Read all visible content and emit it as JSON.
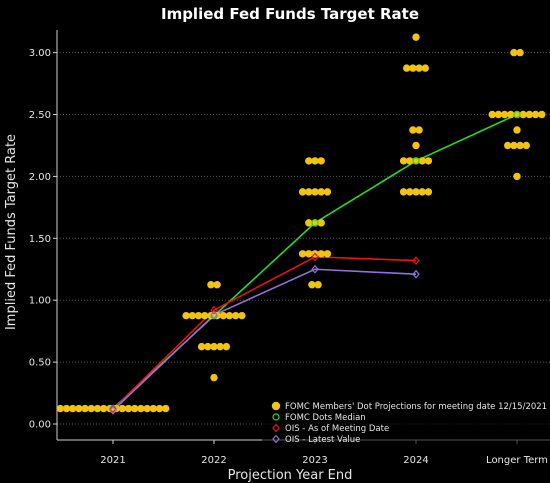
{
  "chart_data": {
    "type": "scatter",
    "title": "Implied Fed Funds Target Rate",
    "xlabel": "Projection Year End",
    "ylabel": "Implied Fed Funds Target Rate",
    "categories": [
      "2021",
      "2022",
      "2023",
      "2024",
      "Longer Term"
    ],
    "ylim": [
      -0.125,
      3.25
    ],
    "yticks": [
      0.0,
      0.5,
      1.0,
      1.5,
      2.0,
      2.5,
      3.0
    ],
    "ytick_labels": [
      "0.00",
      "0.50",
      "1.00",
      "1.50",
      "2.00",
      "2.50",
      "3.00"
    ],
    "grid": "y-major dotted",
    "legend_position": "bottom-right",
    "dots": {
      "name": "FOMC Members' Dot Projections for meeting date 12/15/2021",
      "color": "#f2c40f",
      "values": [
        {
          "category": "2021",
          "rate": 0.125,
          "count": 18
        },
        {
          "category": "2022",
          "rate": 1.125,
          "count": 2
        },
        {
          "category": "2022",
          "rate": 0.875,
          "count": 10
        },
        {
          "category": "2022",
          "rate": 0.625,
          "count": 5
        },
        {
          "category": "2022",
          "rate": 0.375,
          "count": 1
        },
        {
          "category": "2023",
          "rate": 2.125,
          "count": 3
        },
        {
          "category": "2023",
          "rate": 1.875,
          "count": 5
        },
        {
          "category": "2023",
          "rate": 1.625,
          "count": 3
        },
        {
          "category": "2023",
          "rate": 1.375,
          "count": 5
        },
        {
          "category": "2023",
          "rate": 1.125,
          "count": 2
        },
        {
          "category": "2024",
          "rate": 3.125,
          "count": 1
        },
        {
          "category": "2024",
          "rate": 2.875,
          "count": 4
        },
        {
          "category": "2024",
          "rate": 2.375,
          "count": 2
        },
        {
          "category": "2024",
          "rate": 2.25,
          "count": 1
        },
        {
          "category": "2024",
          "rate": 2.125,
          "count": 5
        },
        {
          "category": "2024",
          "rate": 1.875,
          "count": 5
        },
        {
          "category": "Longer Term",
          "rate": 3.0,
          "count": 2
        },
        {
          "category": "Longer Term",
          "rate": 2.5,
          "count": 9
        },
        {
          "category": "Longer Term",
          "rate": 2.375,
          "count": 1
        },
        {
          "category": "Longer Term",
          "rate": 2.25,
          "count": 4
        },
        {
          "category": "Longer Term",
          "rate": 2.0,
          "count": 1
        }
      ]
    },
    "series": [
      {
        "name": "FOMC Dots Median",
        "color": "#22dd22",
        "marker": "circle",
        "categories": [
          "2021",
          "2022",
          "2023",
          "2024",
          "Longer Term"
        ],
        "values": [
          0.125,
          0.875,
          1.625,
          2.125,
          2.5
        ]
      },
      {
        "name": "OIS - As of Meeting Date",
        "color": "#ee1111",
        "marker": "diamond",
        "categories": [
          "2021",
          "2022",
          "2023",
          "2024"
        ],
        "values": [
          0.12,
          0.92,
          1.35,
          1.32
        ]
      },
      {
        "name": "OIS - Latest Value",
        "color": "#9370db",
        "marker": "diamond",
        "categories": [
          "2021",
          "2022",
          "2023",
          "2024"
        ],
        "values": [
          0.11,
          0.88,
          1.25,
          1.21
        ]
      }
    ]
  }
}
